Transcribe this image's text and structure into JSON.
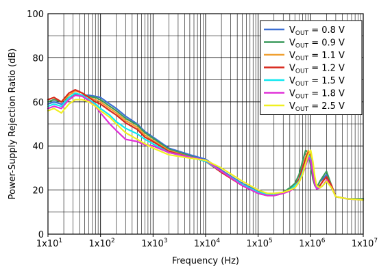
{
  "chart_data": {
    "type": "line",
    "xlabel": "Frequency (Hz)",
    "ylabel": "Power-Supply Rejection Ratio (dB)",
    "x_scale": "log",
    "xlim": [
      10,
      10000000
    ],
    "ylim": [
      0,
      100
    ],
    "grid": true,
    "legend_position": "top-right",
    "x_ticks": [
      10,
      100,
      1000,
      10000,
      100000,
      1000000,
      10000000
    ],
    "x_tick_labels": [
      {
        "base": "1x10",
        "exp": "1"
      },
      {
        "base": "1x10",
        "exp": "2"
      },
      {
        "base": "1x10",
        "exp": "3"
      },
      {
        "base": "1x10",
        "exp": "4"
      },
      {
        "base": "1x10",
        "exp": "5"
      },
      {
        "base": "1x10",
        "exp": "6"
      },
      {
        "base": "1x10",
        "exp": "7"
      }
    ],
    "y_ticks": [
      0,
      20,
      40,
      60,
      80,
      100
    ],
    "y_tick_labels": [
      "0",
      "20",
      "40",
      "60",
      "80",
      "100"
    ],
    "series": [
      {
        "name": "V_OUT = 0.8 V",
        "label_parts": {
          "pre": "V",
          "sub": "OUT",
          "post": " = 0.8 V"
        },
        "color": "#3c6fd2",
        "x": [
          10,
          13,
          18,
          25,
          33,
          45,
          60,
          80,
          100,
          150,
          200,
          300,
          500,
          700,
          1000,
          2000,
          5000,
          10000,
          20000,
          50000,
          100000,
          150000,
          200000,
          300000,
          400000,
          500000,
          600000,
          700000,
          800000,
          900000,
          1000000,
          1100000,
          1200000,
          1300000,
          1500000,
          1700000,
          2000000,
          2500000,
          3000000,
          5000000,
          10000000
        ],
        "y": [
          59,
          60,
          59,
          61,
          63,
          63,
          63,
          62.5,
          62,
          59,
          57,
          53.5,
          50,
          46.5,
          44,
          39,
          36,
          34,
          29,
          23,
          19.5,
          18,
          18,
          19,
          20.5,
          22,
          25,
          30,
          35,
          37.5,
          34,
          27,
          23,
          21,
          24,
          25,
          27,
          21,
          17,
          16,
          16
        ]
      },
      {
        "name": "V_OUT = 0.9 V",
        "label_parts": {
          "pre": "V",
          "sub": "OUT",
          "post": " = 0.9 V"
        },
        "color": "#3a9a5b",
        "x": [
          10,
          13,
          18,
          25,
          33,
          45,
          60,
          80,
          100,
          150,
          200,
          300,
          500,
          700,
          1000,
          2000,
          5000,
          10000,
          20000,
          50000,
          100000,
          150000,
          200000,
          300000,
          400000,
          500000,
          600000,
          700000,
          800000,
          900000,
          1000000,
          1100000,
          1200000,
          1300000,
          1500000,
          1700000,
          2000000,
          2500000,
          3000000,
          5000000,
          10000000
        ],
        "y": [
          60,
          61,
          60,
          62,
          63.5,
          63,
          62.5,
          62,
          61,
          58,
          56,
          52.5,
          49.5,
          46,
          43.5,
          38.5,
          35.5,
          33,
          28.5,
          22.5,
          19,
          17.8,
          17.8,
          19,
          21,
          23,
          27,
          33,
          38,
          37,
          31,
          25,
          22,
          21,
          24,
          26,
          28.5,
          22,
          17,
          16,
          16
        ]
      },
      {
        "name": "V_OUT = 1.1 V",
        "label_parts": {
          "pre": "V",
          "sub": "OUT",
          "post": " = 1.1 V"
        },
        "color": "#f0a030",
        "x": [
          10,
          13,
          18,
          25,
          33,
          45,
          60,
          80,
          100,
          150,
          200,
          300,
          500,
          700,
          1000,
          2000,
          5000,
          10000,
          20000,
          50000,
          100000,
          150000,
          200000,
          300000,
          400000,
          500000,
          600000,
          700000,
          800000,
          900000,
          1000000,
          1100000,
          1200000,
          1300000,
          1500000,
          1700000,
          2000000,
          2500000,
          3000000,
          5000000,
          10000000
        ],
        "y": [
          61,
          62,
          60,
          63,
          65,
          64,
          62,
          61,
          60,
          57,
          55,
          51.5,
          48.5,
          45,
          42.5,
          38,
          35,
          33,
          28.5,
          22.5,
          19,
          18,
          18,
          19,
          20,
          22,
          25,
          30,
          35,
          38,
          35,
          28,
          23,
          21,
          22,
          24,
          26,
          22,
          17,
          16,
          15.5
        ]
      },
      {
        "name": "V_OUT = 1.2 V",
        "label_parts": {
          "pre": "V",
          "sub": "OUT",
          "post": " = 1.2 V"
        },
        "color": "#d82a1e",
        "x": [
          10,
          13,
          18,
          25,
          33,
          45,
          60,
          80,
          100,
          150,
          200,
          300,
          500,
          700,
          1000,
          2000,
          5000,
          10000,
          20000,
          50000,
          100000,
          150000,
          200000,
          300000,
          400000,
          500000,
          600000,
          700000,
          800000,
          900000,
          1000000,
          1100000,
          1200000,
          1300000,
          1500000,
          1700000,
          2000000,
          2500000,
          3000000,
          5000000,
          10000000
        ],
        "y": [
          61,
          62,
          60,
          64,
          65.5,
          64,
          62,
          60,
          59,
          56,
          54,
          50.5,
          47.5,
          44,
          42,
          37.5,
          35,
          33,
          28,
          22,
          18.5,
          17.5,
          17.5,
          18.5,
          20,
          22,
          25,
          30,
          34,
          37,
          34,
          27,
          22.5,
          21,
          22,
          24,
          26,
          22,
          17,
          16,
          15.5
        ]
      },
      {
        "name": "V_OUT = 1.5 V",
        "label_parts": {
          "pre": "V",
          "sub": "OUT",
          "post": " = 1.5 V"
        },
        "color": "#10e8f0",
        "x": [
          10,
          13,
          18,
          25,
          33,
          45,
          60,
          80,
          100,
          150,
          200,
          300,
          500,
          700,
          1000,
          2000,
          5000,
          10000,
          20000,
          50000,
          100000,
          150000,
          200000,
          300000,
          400000,
          500000,
          600000,
          700000,
          800000,
          900000,
          1000000,
          1100000,
          1200000,
          1300000,
          1500000,
          1700000,
          2000000,
          2500000,
          3000000,
          5000000,
          10000000
        ],
        "y": [
          58,
          59,
          58,
          62,
          64,
          63,
          61,
          59,
          57,
          54,
          51,
          48,
          45.5,
          43,
          41,
          37,
          35,
          33,
          28.5,
          22.5,
          19,
          18,
          18,
          19,
          20,
          22,
          24,
          28,
          32,
          36,
          34,
          28,
          23,
          21,
          21,
          22,
          24,
          21,
          17,
          16,
          15.5
        ]
      },
      {
        "name": "V_OUT = 1.8 V",
        "label_parts": {
          "pre": "V",
          "sub": "OUT",
          "post": " = 1.8 V"
        },
        "color": "#e030d8",
        "x": [
          10,
          13,
          18,
          25,
          33,
          45,
          60,
          80,
          100,
          150,
          200,
          300,
          500,
          700,
          1000,
          2000,
          5000,
          10000,
          20000,
          50000,
          100000,
          150000,
          200000,
          300000,
          400000,
          500000,
          600000,
          700000,
          800000,
          900000,
          1000000,
          1100000,
          1200000,
          1300000,
          1500000,
          1700000,
          2000000,
          2500000,
          3000000,
          5000000,
          10000000
        ],
        "y": [
          57,
          58,
          57,
          61,
          63,
          62.5,
          60.5,
          58,
          55,
          50,
          47,
          43,
          42,
          40.5,
          40,
          37,
          35,
          33.5,
          28.5,
          22,
          18.5,
          17.5,
          17.5,
          18.5,
          19.5,
          21,
          23.5,
          27,
          31,
          35,
          33.5,
          27.5,
          22.5,
          20.5,
          21,
          22,
          24.5,
          21,
          17,
          16,
          15.5
        ]
      },
      {
        "name": "V_OUT = 2.5 V",
        "label_parts": {
          "pre": "V",
          "sub": "OUT",
          "post": " = 2.5 V"
        },
        "color": "#f0f020",
        "x": [
          10,
          13,
          18,
          25,
          33,
          45,
          60,
          80,
          100,
          150,
          200,
          300,
          500,
          700,
          1000,
          2000,
          5000,
          10000,
          20000,
          50000,
          100000,
          150000,
          200000,
          300000,
          400000,
          500000,
          600000,
          700000,
          800000,
          900000,
          1000000,
          1100000,
          1200000,
          1300000,
          1500000,
          1700000,
          2000000,
          2500000,
          3000000,
          5000000,
          10000000
        ],
        "y": [
          56,
          57,
          55,
          59,
          61,
          61,
          60,
          58,
          56,
          53,
          50,
          46,
          43,
          41,
          39,
          36,
          34.5,
          33.5,
          30,
          24,
          20,
          18.5,
          18.5,
          19,
          20,
          21,
          23.5,
          27,
          32,
          36,
          38,
          33,
          26,
          22,
          21,
          22,
          24,
          21,
          17,
          16,
          15.5
        ]
      }
    ]
  }
}
